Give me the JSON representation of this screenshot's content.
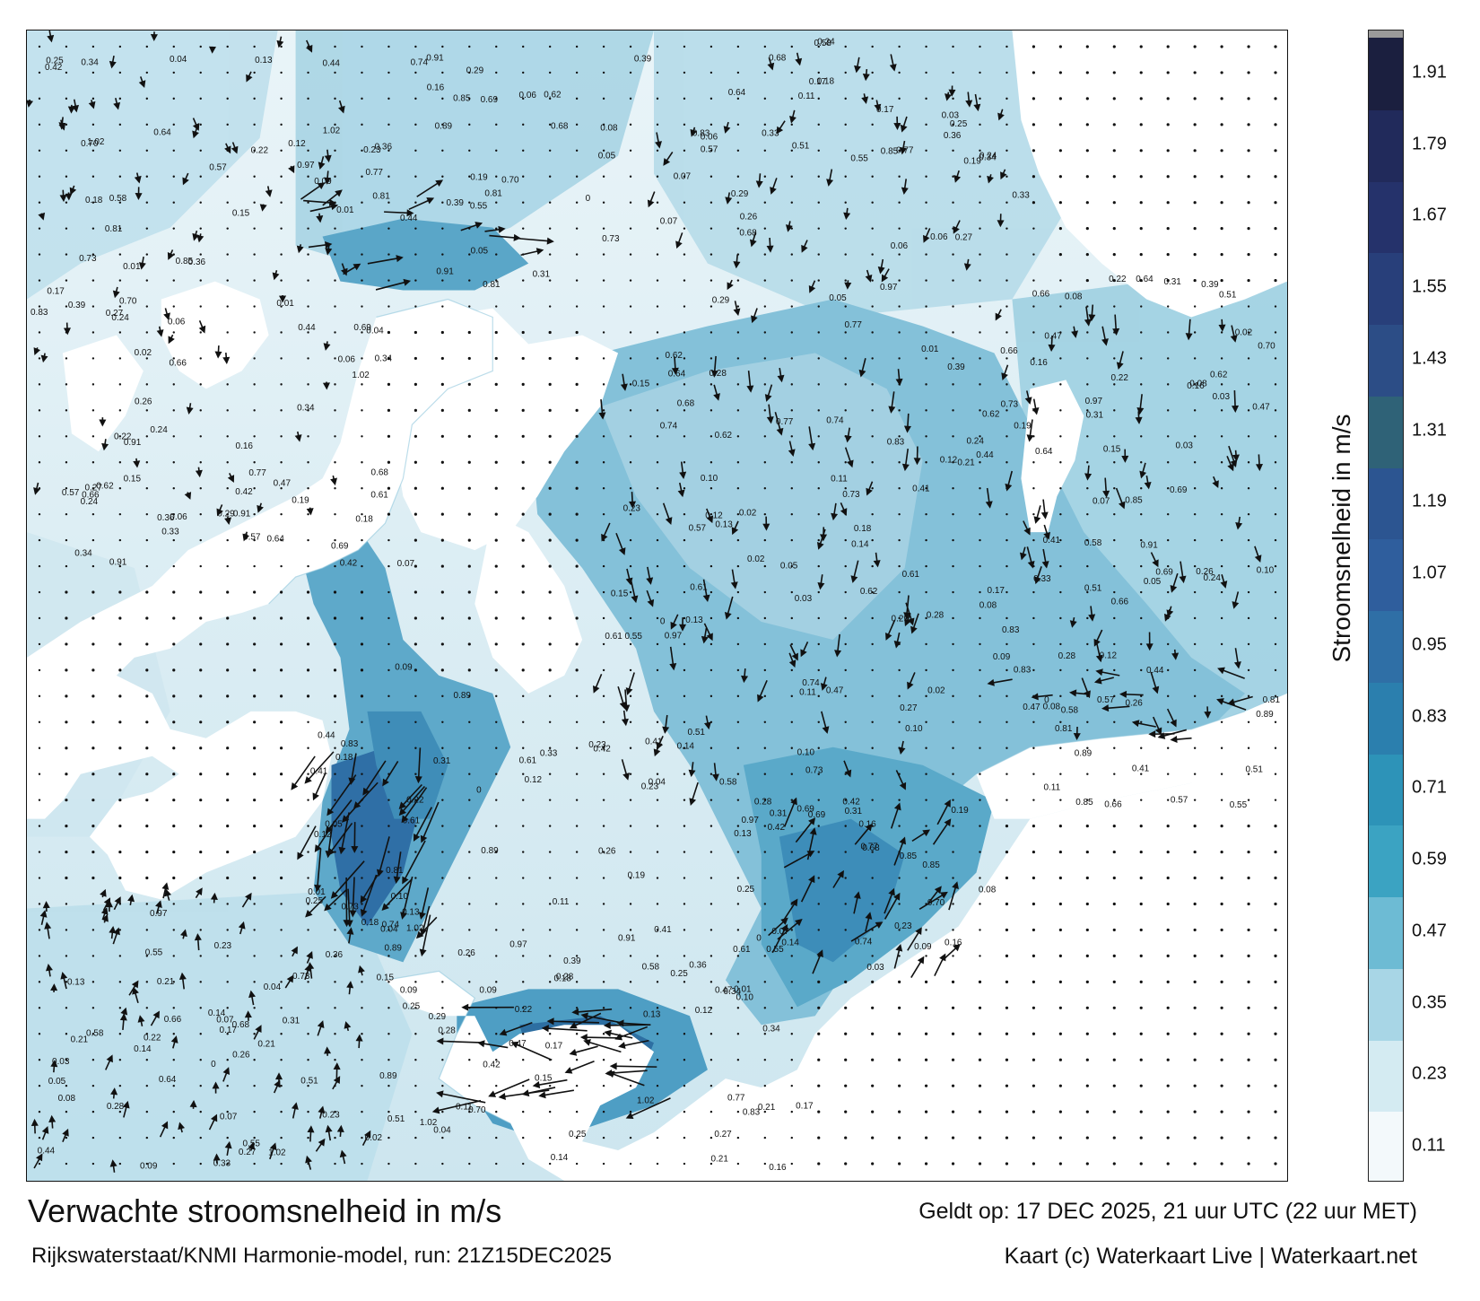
{
  "map": {
    "title": "Verwachte stroomsnelheid in m/s",
    "model_line": "Rijkswaterstaat/KNMI Harmonie-model, run: 21Z15DEC2025",
    "valid_time": "Geldt op: 17 DEC 2025, 21 uur UTC (22 uur MET)",
    "credit": "Kaart (c) Waterkaart Live | Waterkaart.net",
    "land_color": "#ffffff",
    "arrow_color": "#111111"
  },
  "colorbar": {
    "label": "Stroomsnelheid in m/s",
    "ticks": [
      "0.11",
      "0.23",
      "0.35",
      "0.47",
      "0.59",
      "0.71",
      "0.83",
      "0.95",
      "1.07",
      "1.19",
      "1.31",
      "1.43",
      "1.55",
      "1.67",
      "1.79",
      "1.91"
    ],
    "colors": [
      "#f3f9fb",
      "#d4ebf2",
      "#a8d6e6",
      "#6dbbd4",
      "#3ba3c2",
      "#2d93b8",
      "#2b7fae",
      "#2f6fa6",
      "#2f5e9d",
      "#2c5591",
      "#2f6277",
      "#2c4d86",
      "#283f7a",
      "#25326b",
      "#212a5b",
      "#1b1f3f"
    ],
    "top_cap_color": "#9a9a9a"
  },
  "sample_values": [
    "0.22",
    "0.23",
    "0.24",
    "0.25",
    "0.17",
    "0.16",
    "0.09",
    "0.12",
    "0.18",
    "0.06",
    "0.08",
    "0.07",
    "0.05",
    "0.13",
    "0.15",
    "0.26",
    "0.28",
    "0.31",
    "0.34",
    "0.42",
    "0.44",
    "0.47",
    "0.51",
    "0.57",
    "0.61",
    "0.66",
    "0.73",
    "0.81",
    "0.89",
    "0.91",
    "0.77",
    "0.85",
    "0.97",
    "1.02",
    "0.83",
    "0.69",
    "0.55",
    "0.58",
    "0.62",
    "0.64",
    "0.68",
    "0.70",
    "0.74",
    "0.39",
    "0.36",
    "0.41",
    "0.33",
    "0.29",
    "0.27",
    "0.21",
    "0.19",
    "0.14",
    "0.11",
    "0.10",
    "0.04",
    "0.03",
    "0.02",
    "0.01",
    "0"
  ]
}
